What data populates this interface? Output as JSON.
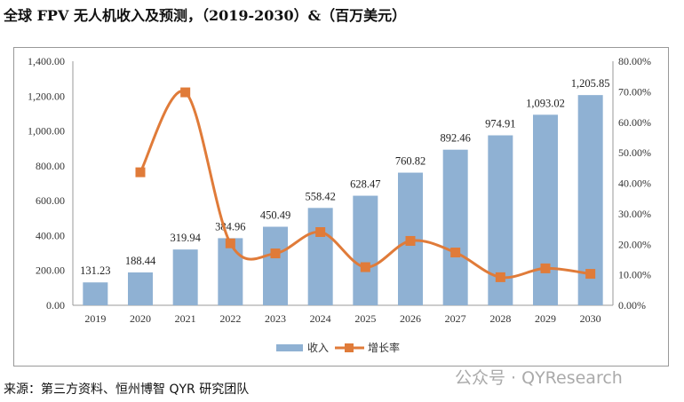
{
  "title": "全球 FPV 无人机收入及预测，（2019-2030）&（百万美元）",
  "source": "来源：第三方资料、恒州博智 QYR 研究团队",
  "watermark": "公众号 · QYResearch",
  "chart_data": {
    "type": "bar+line",
    "title": "",
    "categories": [
      "2019",
      "2020",
      "2021",
      "2022",
      "2023",
      "2024",
      "2025",
      "2026",
      "2027",
      "2028",
      "2029",
      "2030"
    ],
    "series": [
      {
        "name": "收入",
        "type": "bar",
        "axis": "left",
        "color": "#8FB1D3",
        "values": [
          131.23,
          188.44,
          319.94,
          384.96,
          450.49,
          558.42,
          628.47,
          760.82,
          892.46,
          974.91,
          1093.02,
          1205.85
        ],
        "labels": [
          "131.23",
          "188.44",
          "319.94",
          "384.96",
          "450.49",
          "558.42",
          "628.47",
          "760.82",
          "892.46",
          "974.91",
          "1,093.02",
          "1,205.85"
        ]
      },
      {
        "name": "增长率",
        "type": "line",
        "axis": "right",
        "color": "#E07B39",
        "values": [
          null,
          43.6,
          69.8,
          20.3,
          17.0,
          24.0,
          12.5,
          21.1,
          17.3,
          9.2,
          12.1,
          10.3
        ]
      }
    ],
    "left_axis": {
      "min": 0,
      "max": 1400,
      "ticks": [
        "0.00",
        "200.00",
        "400.00",
        "600.00",
        "800.00",
        "1,000.00",
        "1,200.00",
        "1,400.00"
      ]
    },
    "right_axis": {
      "min": 0,
      "max": 80,
      "ticks": [
        "0.00%",
        "10.00%",
        "20.00%",
        "30.00%",
        "40.00%",
        "50.00%",
        "60.00%",
        "70.00%",
        "80.00%"
      ]
    },
    "grid": false,
    "legend": "bottom"
  }
}
